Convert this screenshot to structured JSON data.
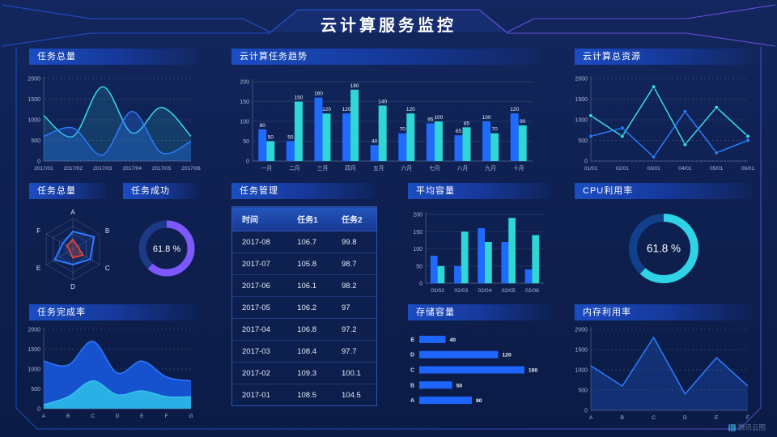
{
  "page": {
    "title": "云计算服务监控",
    "watermark": "腾讯云图"
  },
  "colors": {
    "blue": "#1f6bff",
    "cyan": "#2fd6d6",
    "line_cyan": "#38dce6",
    "line_blue": "#2b7bff",
    "purple": "#7e57ff",
    "red": "#ff4a30",
    "frame_blue": "#2353cf",
    "frame_purple": "#6a4fe0"
  },
  "panels": {
    "tasks_total": {
      "title": "任务总量"
    },
    "task_trend": {
      "title": "云计算任务趋势"
    },
    "total_resources": {
      "title": "云计算总资源"
    },
    "task_radar": {
      "title": "任务总量"
    },
    "task_success": {
      "title": "任务成功"
    },
    "task_table": {
      "title": "任务管理"
    },
    "avg_capacity": {
      "title": "平均容量"
    },
    "cpu": {
      "title": "CPU利用率"
    },
    "completion": {
      "title": "任务完成率"
    },
    "storage": {
      "title": "存储容量"
    },
    "memory": {
      "title": "内存利用率"
    }
  },
  "chart_data": [
    {
      "id": "tasks_total",
      "type": "area",
      "title": "任务总量",
      "x": [
        "2017/01",
        "2017/02",
        "2017/03",
        "2017/04",
        "2017/05",
        "2017/06"
      ],
      "series": [
        {
          "name": "series-cyan",
          "color": "#38dce6",
          "values": [
            1100,
            600,
            1800,
            680,
            1300,
            600
          ],
          "fill": "rgba(56,220,230,0.14)"
        },
        {
          "name": "series-blue",
          "color": "#2b7bff",
          "values": [
            600,
            800,
            150,
            1200,
            200,
            480
          ],
          "fill": "rgba(43,123,255,0.28)"
        }
      ],
      "ylim": [
        0,
        2000
      ],
      "yticks": [
        0,
        500,
        1000,
        1500,
        2000
      ],
      "smooth": true,
      "grid": "dashed",
      "axisline": true
    },
    {
      "id": "task_trend",
      "type": "bar",
      "title": "云计算任务趋势",
      "categories": [
        "一月",
        "二月",
        "三月",
        "四月",
        "五月",
        "六月",
        "七月",
        "八月",
        "九月",
        "十月"
      ],
      "series": [
        {
          "name": "任务1",
          "color": "#1f6bff",
          "values": [
            80,
            50,
            160,
            120,
            40,
            70,
            95,
            65,
            100,
            120
          ]
        },
        {
          "name": "任务2",
          "color": "#2fd6d6",
          "values": [
            50,
            150,
            120,
            180,
            140,
            120,
            100,
            85,
            70,
            90
          ]
        }
      ],
      "ylim": [
        0,
        200
      ],
      "yticks": [
        0,
        50,
        100,
        150,
        200
      ],
      "data_labels": true,
      "grid": "solid",
      "axisline": true
    },
    {
      "id": "total_resources",
      "type": "line",
      "title": "云计算总资源",
      "x": [
        "01/01",
        "02/01",
        "03/01",
        "04/01",
        "05/01",
        "06/01"
      ],
      "series": [
        {
          "name": "series-cyan",
          "color": "#38dce6",
          "values": [
            1100,
            600,
            1800,
            400,
            1300,
            600
          ]
        },
        {
          "name": "series-blue",
          "color": "#2b7bff",
          "values": [
            600,
            800,
            100,
            1200,
            200,
            500
          ]
        }
      ],
      "ylim": [
        0,
        2000
      ],
      "yticks": [
        0,
        500,
        1000,
        1500,
        2000
      ],
      "smooth": false,
      "markers": true,
      "grid": "dashed",
      "axisline": true
    },
    {
      "id": "task_radar",
      "type": "radar",
      "title": "任务总量",
      "axes": [
        "A",
        "B",
        "C",
        "D",
        "E",
        "F"
      ],
      "max": 100,
      "series": [
        {
          "name": "series-blue",
          "color": "#2e7bff",
          "fill": "rgba(46,123,255,0.12)",
          "values": [
            58,
            80,
            65,
            50,
            68,
            38
          ]
        },
        {
          "name": "series-red",
          "color": "#ff4a30",
          "fill": "rgba(255,74,48,0.25)",
          "values": [
            32,
            18,
            38,
            28,
            12,
            22
          ]
        }
      ]
    },
    {
      "id": "task_success",
      "type": "donut",
      "title": "任务成功",
      "value": 61.8,
      "label": "61.8 %",
      "color": "#7e57ff",
      "track": "#1c3a85"
    },
    {
      "id": "task_table",
      "type": "table",
      "title": "任务管理",
      "headers": [
        "时间",
        "任务1",
        "任务2"
      ],
      "rows": [
        [
          "2017-08",
          "106.7",
          "99.8"
        ],
        [
          "2017-07",
          "105.8",
          "98.7"
        ],
        [
          "2017-06",
          "106.1",
          "98.2"
        ],
        [
          "2017-05",
          "106.2",
          "97"
        ],
        [
          "2017-04",
          "106.8",
          "97.2"
        ],
        [
          "2017-03",
          "108.4",
          "97.7"
        ],
        [
          "2017-02",
          "109.3",
          "100.1"
        ],
        [
          "2017-01",
          "108.5",
          "104.5"
        ]
      ]
    },
    {
      "id": "avg_capacity",
      "type": "bar",
      "title": "平均容量",
      "categories": [
        "02/02",
        "02/03",
        "02/04",
        "02/05",
        "02/06"
      ],
      "series": [
        {
          "name": "series-blue",
          "color": "#1f6bff",
          "values": [
            80,
            50,
            160,
            120,
            40
          ]
        },
        {
          "name": "series-cyan",
          "color": "#2fd6d6",
          "values": [
            50,
            150,
            120,
            190,
            140
          ]
        }
      ],
      "ylim": [
        0,
        200
      ],
      "yticks": [
        0,
        50,
        100,
        150,
        200
      ],
      "data_labels": false,
      "grid": "solid",
      "axisline": true
    },
    {
      "id": "cpu",
      "type": "donut",
      "title": "CPU利用率",
      "value": 61.8,
      "label": "61.8 %",
      "color": "#2ed3e6",
      "track": "#11418c"
    },
    {
      "id": "completion",
      "type": "area",
      "title": "任务完成率",
      "x": [
        "A",
        "B",
        "C",
        "D",
        "E",
        "F",
        "G"
      ],
      "series": [
        {
          "name": "layer-total",
          "color": "#2e7bff",
          "values": [
            1200,
            1100,
            1700,
            900,
            1200,
            800,
            700
          ],
          "fill": "#1652cd"
        },
        {
          "name": "layer-done",
          "color": "#35c0ee",
          "values": [
            100,
            300,
            700,
            350,
            450,
            300,
            300
          ],
          "fill": "#2bb0e6"
        }
      ],
      "ylim": [
        0,
        2000
      ],
      "yticks": [
        0,
        500,
        1000,
        1500,
        2000
      ],
      "smooth": true,
      "grid": "dashed",
      "axisline": true
    },
    {
      "id": "storage",
      "type": "hbar",
      "title": "存储容量",
      "categories": [
        "E",
        "D",
        "C",
        "B",
        "A"
      ],
      "values": [
        40,
        120,
        160,
        50,
        80
      ],
      "xmax": 170,
      "color": "#1e66ff",
      "data_labels": true
    },
    {
      "id": "memory",
      "type": "area",
      "title": "内存利用率",
      "x": [
        "A",
        "B",
        "C",
        "D",
        "E",
        "F"
      ],
      "series": [
        {
          "name": "series-blue",
          "color": "#2d7dff",
          "values": [
            1100,
            600,
            1800,
            400,
            1300,
            600
          ],
          "fill": "rgba(35,95,220,0.30)"
        }
      ],
      "ylim": [
        0,
        2000
      ],
      "yticks": [
        0,
        500,
        1000,
        1500,
        2000
      ],
      "smooth": false,
      "grid": "dashed",
      "axisline": true
    }
  ]
}
